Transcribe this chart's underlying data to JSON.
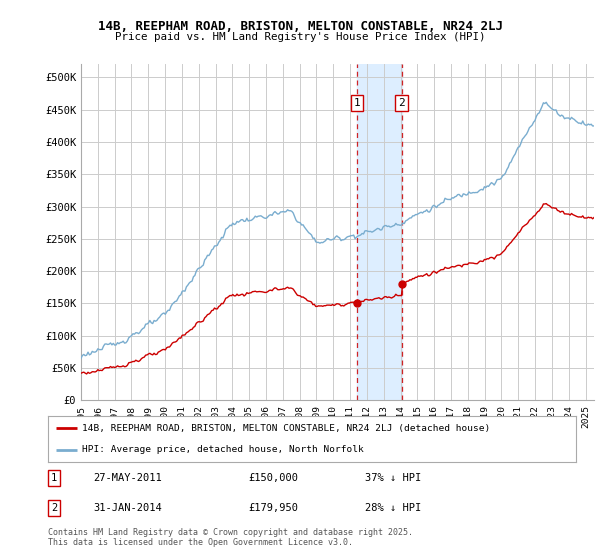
{
  "title1": "14B, REEPHAM ROAD, BRISTON, MELTON CONSTABLE, NR24 2LJ",
  "title2": "Price paid vs. HM Land Registry's House Price Index (HPI)",
  "ylim": [
    0,
    520000
  ],
  "yticks": [
    0,
    50000,
    100000,
    150000,
    200000,
    250000,
    300000,
    350000,
    400000,
    450000,
    500000
  ],
  "ytick_labels": [
    "£0",
    "£50K",
    "£100K",
    "£150K",
    "£200K",
    "£250K",
    "£300K",
    "£350K",
    "£400K",
    "£450K",
    "£500K"
  ],
  "hpi_color": "#7aadcf",
  "price_color": "#cc0000",
  "sale1_date": 2011.41,
  "sale1_price": 150000,
  "sale2_date": 2014.08,
  "sale2_price": 179950,
  "shade_color": "#ddeeff",
  "legend1": "14B, REEPHAM ROAD, BRISTON, MELTON CONSTABLE, NR24 2LJ (detached house)",
  "legend2": "HPI: Average price, detached house, North Norfolk",
  "note1_date": "27-MAY-2011",
  "note1_price": "£150,000",
  "note1_pct": "37% ↓ HPI",
  "note2_date": "31-JAN-2014",
  "note2_price": "£179,950",
  "note2_pct": "28% ↓ HPI",
  "footer": "Contains HM Land Registry data © Crown copyright and database right 2025.\nThis data is licensed under the Open Government Licence v3.0.",
  "xmin": 1995,
  "xmax": 2025.5,
  "grid_color": "#cccccc"
}
